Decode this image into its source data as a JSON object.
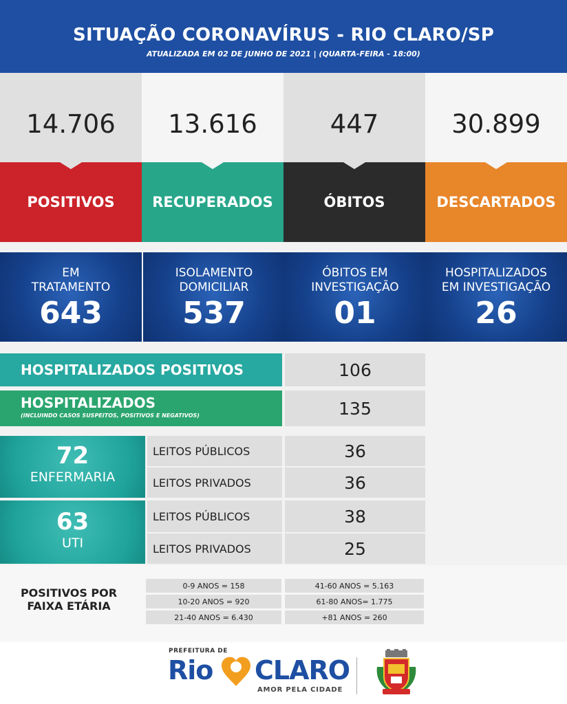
{
  "header": {
    "title": "SITUAÇÃO CORONAVÍRUS - RIO CLARO/SP",
    "subtitle": "ATUALIZADA EM 02 DE JUNHO DE 2021 | (QUARTA-FEIRA - 18:00)"
  },
  "stats": [
    {
      "value": "14.706",
      "label": "POSITIVOS",
      "color": "#cc2229"
    },
    {
      "value": "13.616",
      "label": "RECUPERADOS",
      "color": "#27a68a"
    },
    {
      "value": "447",
      "label": "ÓBITOS",
      "color": "#2b2b2b"
    },
    {
      "value": "30.899",
      "label": "DESCARTADOS",
      "color": "#e8862a"
    }
  ],
  "status_cards": [
    {
      "line1": "EM",
      "line2": "TRATAMENTO",
      "value": "643"
    },
    {
      "line1": "ISOLAMENTO",
      "line2": "DOMICILIAR",
      "value": "537"
    },
    {
      "line1": "ÓBITOS EM",
      "line2": "INVESTIGAÇÃO",
      "value": "01"
    },
    {
      "line1": "HOSPITALIZADOS",
      "line2": "EM INVESTIGAÇÃO",
      "value": "26"
    }
  ],
  "hospitalized": {
    "positive_label": "HOSPITALIZADOS POSITIVOS",
    "positive_value": "106",
    "total_label": "HOSPITALIZADOS",
    "total_note": "(INCLUINDO CASOS SUSPEITOS, POSITIVOS E NEGATIVOS)",
    "total_value": "135"
  },
  "beds": {
    "ward": {
      "total": "72",
      "label": "ENFERMARIA",
      "public_label": "LEITOS PÚBLICOS",
      "public_value": "36",
      "private_label": "LEITOS PRIVADOS",
      "private_value": "36"
    },
    "icu": {
      "total": "63",
      "label": "UTI",
      "public_label": "LEITOS PÚBLICOS",
      "public_value": "38",
      "private_label": "LEITOS PRIVADOS",
      "private_value": "25"
    }
  },
  "age": {
    "title_l1": "POSITIVOS POR",
    "title_l2": "FAIXA ETÁRIA",
    "left": [
      "0-9 ANOS = 158",
      "10-20 ANOS = 920",
      "21-40 ANOS = 6.430"
    ],
    "right": [
      "41-60 ANOS = 5.163",
      "61-80 ANOS= 1.775",
      "+81 ANOS = 260"
    ]
  },
  "footer": {
    "prefeitura": "PREFEITURA DE",
    "rio": "Rio",
    "claro": "CLARO",
    "slogan": "AMOR PELA CIDADE",
    "logo_icon": "location-pin-heart-icon",
    "coat_of_arms": "rio-claro-coat-of-arms"
  }
}
